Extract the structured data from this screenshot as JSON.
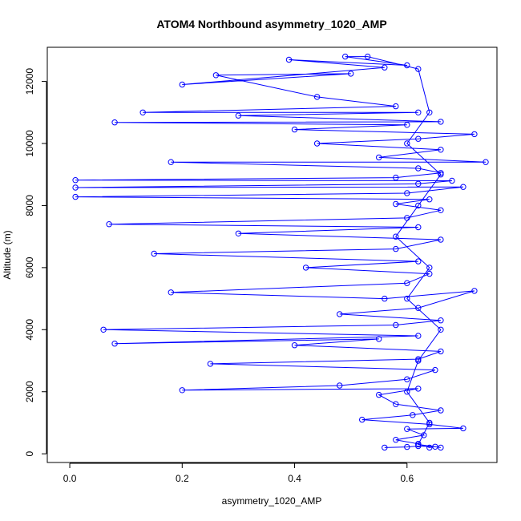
{
  "chart_data": {
    "type": "scatter",
    "title": "ATOM4 Northbound asymmetry_1020_AMP",
    "xlabel": "asymmetry_1020_AMP",
    "ylabel": "Altitude (m)",
    "xlim": [
      -0.04,
      0.76
    ],
    "ylim": [
      -280,
      13100
    ],
    "x_ticks": [
      0.0,
      0.2,
      0.4,
      0.6
    ],
    "x_tick_labels": [
      "0.0",
      "0.2",
      "0.4",
      "0.6"
    ],
    "y_ticks": [
      0,
      2000,
      4000,
      6000,
      8000,
      10000,
      12000
    ],
    "y_tick_labels": [
      "0",
      "2000",
      "4000",
      "6000",
      "8000",
      "10000",
      "12000"
    ],
    "grid": false,
    "markers": "open circles connected by lines",
    "series": [
      {
        "color": "#0000ff",
        "points": [
          [
            0.56,
            200
          ],
          [
            0.6,
            220
          ],
          [
            0.62,
            250
          ],
          [
            0.65,
            230
          ],
          [
            0.64,
            200
          ],
          [
            0.62,
            320
          ],
          [
            0.58,
            450
          ],
          [
            0.63,
            600
          ],
          [
            0.6,
            800
          ],
          [
            0.7,
            820
          ],
          [
            0.64,
            950
          ],
          [
            0.52,
            1100
          ],
          [
            0.61,
            1250
          ],
          [
            0.66,
            1400
          ],
          [
            0.58,
            1600
          ],
          [
            0.55,
            1900
          ],
          [
            0.62,
            2100
          ],
          [
            0.2,
            2050
          ],
          [
            0.48,
            2200
          ],
          [
            0.6,
            2400
          ],
          [
            0.65,
            2700
          ],
          [
            0.25,
            2900
          ],
          [
            0.62,
            3050
          ],
          [
            0.66,
            3300
          ],
          [
            0.4,
            3500
          ],
          [
            0.55,
            3700
          ],
          [
            0.08,
            3550
          ],
          [
            0.62,
            3800
          ],
          [
            0.06,
            4000
          ],
          [
            0.58,
            4150
          ],
          [
            0.66,
            4300
          ],
          [
            0.48,
            4500
          ],
          [
            0.62,
            4700
          ],
          [
            0.72,
            5250
          ],
          [
            0.56,
            5000
          ],
          [
            0.18,
            5200
          ],
          [
            0.6,
            5500
          ],
          [
            0.64,
            5800
          ],
          [
            0.42,
            6000
          ],
          [
            0.62,
            6200
          ],
          [
            0.15,
            6450
          ],
          [
            0.58,
            6600
          ],
          [
            0.66,
            6900
          ],
          [
            0.3,
            7100
          ],
          [
            0.62,
            7300
          ],
          [
            0.07,
            7400
          ],
          [
            0.6,
            7600
          ],
          [
            0.66,
            7850
          ],
          [
            0.58,
            8050
          ],
          [
            0.64,
            8200
          ],
          [
            0.01,
            8280
          ],
          [
            0.6,
            8400
          ],
          [
            0.7,
            8600
          ],
          [
            0.01,
            8580
          ],
          [
            0.62,
            8700
          ],
          [
            0.68,
            8800
          ],
          [
            0.01,
            8820
          ],
          [
            0.58,
            8900
          ],
          [
            0.66,
            9050
          ],
          [
            0.62,
            9200
          ],
          [
            0.18,
            9400
          ],
          [
            0.74,
            9400
          ],
          [
            0.55,
            9550
          ],
          [
            0.66,
            9800
          ],
          [
            0.44,
            10000
          ],
          [
            0.62,
            10150
          ],
          [
            0.72,
            10300
          ],
          [
            0.4,
            10450
          ],
          [
            0.6,
            10600
          ],
          [
            0.08,
            10680
          ],
          [
            0.66,
            10700
          ],
          [
            0.3,
            10900
          ],
          [
            0.62,
            11000
          ],
          [
            0.13,
            11000
          ],
          [
            0.58,
            11200
          ],
          [
            0.44,
            11500
          ],
          [
            0.26,
            12200
          ],
          [
            0.5,
            12250
          ],
          [
            0.2,
            11900
          ],
          [
            0.56,
            12450
          ],
          [
            0.39,
            12700
          ],
          [
            0.6,
            12520
          ],
          [
            0.49,
            12800
          ],
          [
            0.53,
            12800
          ],
          [
            0.62,
            12400
          ],
          [
            0.64,
            11000
          ],
          [
            0.6,
            10000
          ],
          [
            0.66,
            9000
          ],
          [
            0.62,
            8000
          ],
          [
            0.58,
            7000
          ],
          [
            0.64,
            6000
          ],
          [
            0.6,
            5000
          ],
          [
            0.66,
            4000
          ],
          [
            0.62,
            3000
          ],
          [
            0.6,
            2000
          ],
          [
            0.64,
            1000
          ],
          [
            0.62,
            300
          ],
          [
            0.66,
            200
          ]
        ]
      }
    ]
  }
}
